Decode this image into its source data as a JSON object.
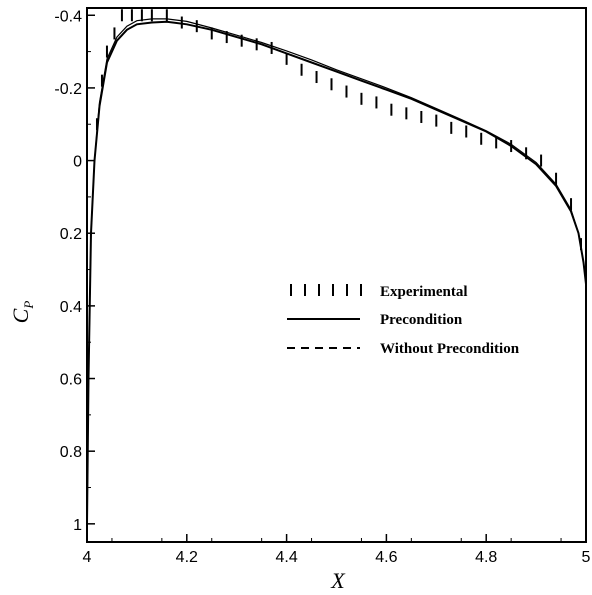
{
  "chart_data": {
    "type": "line",
    "xlabel": "X",
    "ylabel_main": "C",
    "ylabel_sub": "P",
    "xlim": [
      4.0,
      5.0
    ],
    "ylim": [
      1.05,
      -0.42
    ],
    "y_inverted": true,
    "x_ticks": [
      4,
      4.2,
      4.4,
      4.6,
      4.8,
      5
    ],
    "x_tick_labels": [
      "4",
      "4.2",
      "4.4",
      "4.6",
      "4.8",
      "5"
    ],
    "y_ticks": [
      -0.4,
      -0.2,
      0,
      0.2,
      0.4,
      0.6,
      0.8,
      1
    ],
    "y_tick_labels": [
      "-0.4",
      "-0.2",
      "0",
      "0.2",
      "0.4",
      "0.6",
      "0.8",
      "1"
    ],
    "legend_position": "center-right",
    "grid": false,
    "series": [
      {
        "name": "Experimental",
        "style": "vertical-tick-markers",
        "x": [
          4.02,
          4.03,
          4.04,
          4.055,
          4.07,
          4.09,
          4.11,
          4.13,
          4.16,
          4.19,
          4.22,
          4.25,
          4.28,
          4.31,
          4.34,
          4.37,
          4.4,
          4.43,
          4.46,
          4.49,
          4.52,
          4.55,
          4.58,
          4.61,
          4.64,
          4.67,
          4.7,
          4.73,
          4.76,
          4.79,
          4.82,
          4.85,
          4.88,
          4.91,
          4.94,
          4.97,
          4.99
        ],
        "y": [
          -0.1,
          -0.22,
          -0.3,
          -0.35,
          -0.4,
          -0.4,
          -0.4,
          -0.4,
          -0.4,
          -0.38,
          -0.37,
          -0.35,
          -0.34,
          -0.33,
          -0.32,
          -0.31,
          -0.28,
          -0.25,
          -0.23,
          -0.21,
          -0.19,
          -0.17,
          -0.16,
          -0.14,
          -0.13,
          -0.12,
          -0.11,
          -0.09,
          -0.08,
          -0.06,
          -0.05,
          -0.04,
          -0.02,
          0.0,
          0.05,
          0.12,
          0.23
        ]
      },
      {
        "name": "Precondition",
        "style": "solid",
        "x": [
          4.0,
          4.003,
          4.008,
          4.015,
          4.025,
          4.04,
          4.06,
          4.08,
          4.1,
          4.13,
          4.16,
          4.2,
          4.25,
          4.3,
          4.35,
          4.4,
          4.45,
          4.5,
          4.55,
          4.6,
          4.65,
          4.7,
          4.75,
          4.8,
          4.85,
          4.9,
          4.94,
          4.97,
          4.985,
          4.995,
          5.0
        ],
        "y": [
          1.0,
          0.6,
          0.2,
          0.0,
          -0.15,
          -0.27,
          -0.33,
          -0.36,
          -0.375,
          -0.38,
          -0.382,
          -0.375,
          -0.36,
          -0.34,
          -0.32,
          -0.295,
          -0.27,
          -0.245,
          -0.22,
          -0.195,
          -0.17,
          -0.14,
          -0.11,
          -0.08,
          -0.04,
          0.01,
          0.07,
          0.14,
          0.2,
          0.28,
          0.34
        ]
      },
      {
        "name": "Without Precondition",
        "style": "dashed",
        "x": [
          4.0,
          4.003,
          4.008,
          4.015,
          4.025,
          4.04,
          4.06,
          4.08,
          4.1,
          4.13,
          4.16,
          4.2,
          4.25,
          4.3,
          4.35,
          4.4,
          4.45,
          4.5,
          4.55,
          4.6,
          4.65,
          4.7,
          4.75,
          4.8,
          4.85,
          4.9,
          4.94,
          4.97,
          4.985,
          4.995,
          5.0
        ],
        "y": [
          1.0,
          0.6,
          0.2,
          0.0,
          -0.16,
          -0.28,
          -0.34,
          -0.37,
          -0.385,
          -0.39,
          -0.39,
          -0.383,
          -0.365,
          -0.345,
          -0.325,
          -0.302,
          -0.277,
          -0.25,
          -0.225,
          -0.2,
          -0.173,
          -0.143,
          -0.113,
          -0.082,
          -0.045,
          0.005,
          0.065,
          0.135,
          0.2,
          0.28,
          0.34
        ]
      }
    ]
  }
}
